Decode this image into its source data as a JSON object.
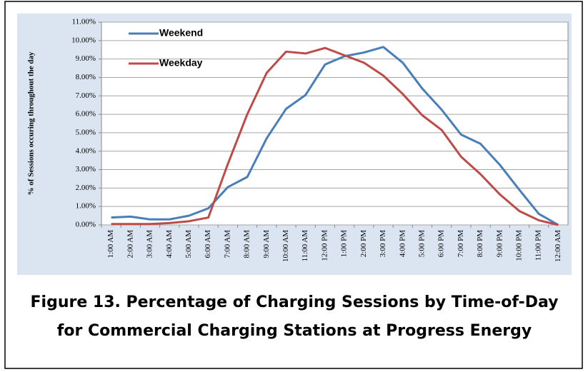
{
  "chart_data": {
    "type": "line",
    "y_label": "% of Sessions occuring throughout the day",
    "categories": [
      "1:00 AM",
      "2:00 AM",
      "3:00 AM",
      "4:00 AM",
      "5:00 AM",
      "6:00 AM",
      "7:00 AM",
      "8:00 AM",
      "9:00 AM",
      "10:00 AM",
      "11:00 AM",
      "12:00 PM",
      "1:00 PM",
      "2:00 PM",
      "3:00 PM",
      "4:00 PM",
      "5:00 PM",
      "6:00 PM",
      "7:00 PM",
      "8:00 PM",
      "9:00 PM",
      "10:00 PM",
      "11:00 PM",
      "12:00 AM"
    ],
    "series": [
      {
        "name": "Weekend",
        "color": "#4a7ebb",
        "values": [
          0.4,
          0.45,
          0.3,
          0.3,
          0.5,
          0.9,
          2.05,
          2.6,
          4.7,
          6.3,
          7.05,
          8.7,
          9.15,
          9.35,
          9.65,
          8.8,
          7.4,
          6.25,
          4.9,
          4.4,
          3.25,
          1.9,
          0.6,
          0.0
        ]
      },
      {
        "name": "Weekday",
        "color": "#be4b48",
        "values": [
          0.05,
          0.05,
          0.05,
          0.1,
          0.2,
          0.4,
          3.3,
          6.0,
          8.25,
          9.4,
          9.3,
          9.6,
          9.2,
          8.8,
          8.1,
          7.1,
          5.95,
          5.15,
          3.7,
          2.75,
          1.65,
          0.75,
          0.25,
          0.0
        ]
      }
    ],
    "ylim": [
      0,
      11
    ],
    "yticks": [
      {
        "value": 0,
        "label": "0.00%"
      },
      {
        "value": 1,
        "label": "1.00%"
      },
      {
        "value": 2,
        "label": "2.00%"
      },
      {
        "value": 3,
        "label": "3.00%"
      },
      {
        "value": 4,
        "label": "4.00%"
      },
      {
        "value": 5,
        "label": "5.00%"
      },
      {
        "value": 6,
        "label": "6.00%"
      },
      {
        "value": 7,
        "label": "7.00%"
      },
      {
        "value": 8,
        "label": "8.00%"
      },
      {
        "value": 9,
        "label": "9.00%"
      },
      {
        "value": 10,
        "label": "10.00%"
      },
      {
        "value": 11,
        "label": "11.00%"
      }
    ],
    "grid": true,
    "legend": "upper left"
  },
  "caption": [
    "Figure 13. Percentage of Charging Sessions by Time-of-Day",
    "for Commercial Charging Stations at Progress Energy"
  ]
}
